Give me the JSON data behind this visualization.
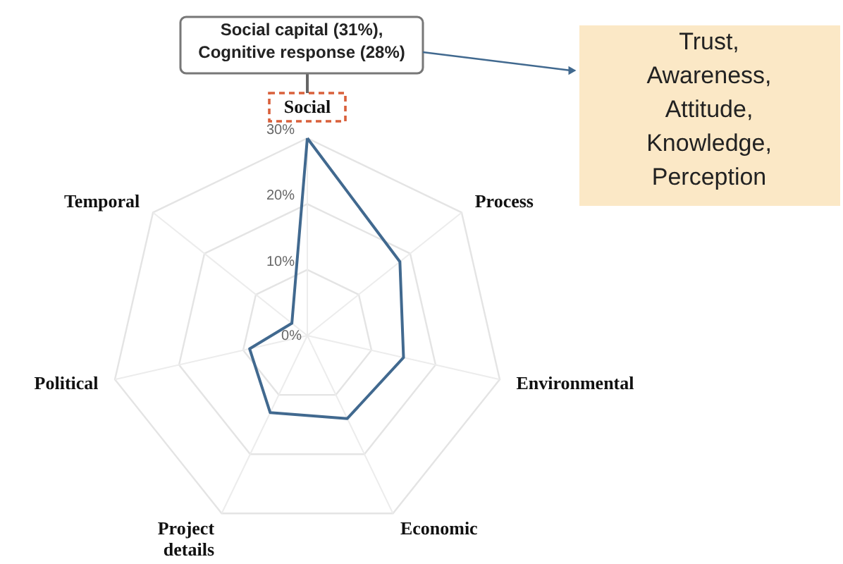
{
  "chart_data": {
    "type": "radar",
    "categories": [
      "Social",
      "Process",
      "Environmental",
      "Economic",
      "Project details",
      "Political",
      "Temporal"
    ],
    "series": [
      {
        "color": "#41698f",
        "values": [
          30,
          18,
          15,
          14,
          13,
          9,
          3
        ]
      }
    ],
    "ylim": [
      0,
      30
    ],
    "yticks": [
      {
        "value": 0,
        "label": "0%"
      },
      {
        "value": 10,
        "label": "10%"
      },
      {
        "value": 20,
        "label": "20%"
      },
      {
        "value": 30,
        "label": "30%"
      }
    ],
    "grid": true,
    "annotations": [
      "Social capital (31%),\nCognitive response (28%)",
      "Trust,\nAwareness,\nAttitude,\nKnowledge,\nPerception"
    ]
  }
}
